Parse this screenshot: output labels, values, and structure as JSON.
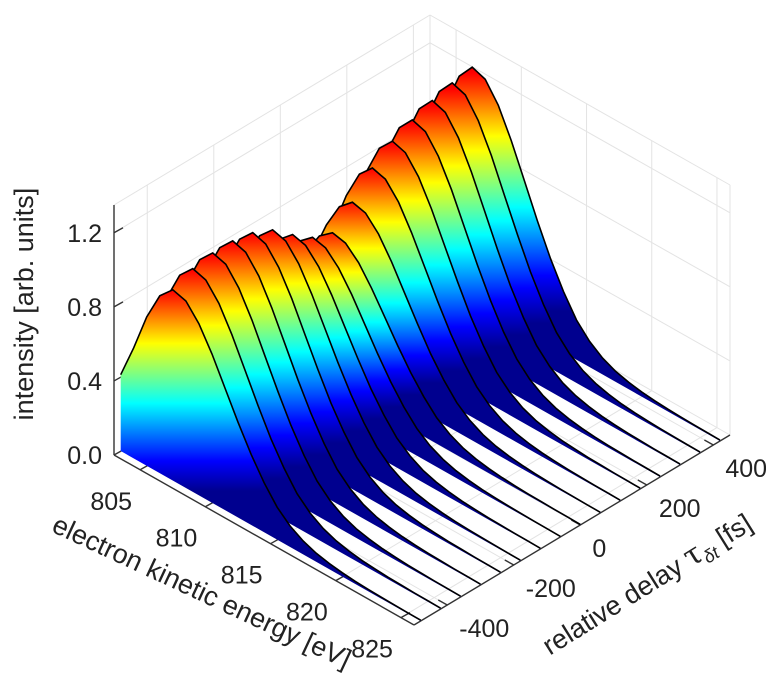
{
  "chart_data": {
    "type": "waterfall",
    "xlabel": "electron kinetic energy [eV]",
    "ylabel": "relative delay",
    "ylabel_symbol": "τ",
    "ylabel_subscript": "δt",
    "ylabel_unit": "[fs]",
    "zlabel": "intensity [arb. units]",
    "xlim": [
      803,
      826
    ],
    "ylim": [
      -500,
      450
    ],
    "zlim": [
      0,
      1.35
    ],
    "xticks": [
      805,
      810,
      815,
      820,
      825
    ],
    "xtick_labels": [
      "805",
      "810",
      "815",
      "820",
      "825"
    ],
    "yticks": [
      -400,
      -200,
      0,
      200,
      400
    ],
    "ytick_labels": [
      "-400",
      "-200",
      "0",
      "200",
      "400"
    ],
    "zticks": [
      0.0,
      0.4,
      0.8,
      1.2
    ],
    "ztick_labels": [
      "0.0",
      "0.4",
      "0.8",
      "1.2"
    ],
    "grid": true,
    "colormap": "jet",
    "curve_outline_color": "#000000",
    "delays": [
      -480,
      -420,
      -360,
      -300,
      -240,
      -180,
      -120,
      -60,
      0,
      60,
      120,
      180,
      240,
      300,
      360,
      420
    ],
    "energy": [
      803,
      804,
      805,
      806,
      807,
      808,
      809,
      810,
      811,
      812,
      813,
      814,
      815,
      816,
      817,
      818,
      819,
      820,
      821,
      822,
      823,
      824,
      825,
      826
    ],
    "peak_heights": [
      1.03,
      1.08,
      1.1,
      1.1,
      1.08,
      1.03,
      0.94,
      0.86,
      0.82,
      0.92,
      1.04,
      1.12,
      1.17,
      1.21,
      1.24,
      1.26
    ],
    "spectrum_shape": [
      0.4,
      0.58,
      0.78,
      0.93,
      1.0,
      0.98,
      0.9,
      0.78,
      0.64,
      0.5,
      0.37,
      0.26,
      0.17,
      0.11,
      0.07,
      0.045,
      0.03,
      0.02,
      0.014,
      0.01,
      0.008,
      0.006,
      0.005,
      0.004
    ]
  }
}
